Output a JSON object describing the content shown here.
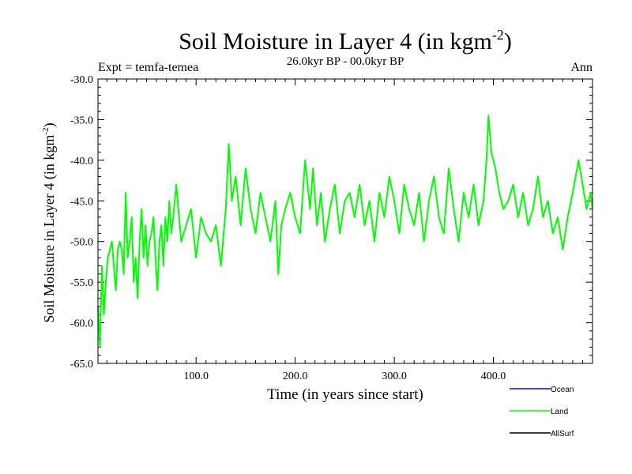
{
  "chart_data": {
    "type": "line",
    "title_main": "Soil Moisture in Layer 4 (in kgm",
    "title_sup": "-2",
    "title_close": ")",
    "subtitle": "26.0kyr BP - 00.0kyr BP",
    "expt_label": "Expt = temfa-temea",
    "period_label": "Ann",
    "xlabel": "Time (in years since start)",
    "ylabel_main": "Soil Moisture in Layer 4 (in kgm",
    "ylabel_sup": "-2",
    "ylabel_close": ")",
    "xlim": [
      1,
      500
    ],
    "ylim": [
      -65,
      -30
    ],
    "x_ticks": [
      100,
      200,
      300,
      400
    ],
    "x_tick_labels": [
      "100.0",
      "200.0",
      "300.0",
      "400.0"
    ],
    "y_ticks": [
      -30,
      -35,
      -40,
      -45,
      -50,
      -55,
      -60,
      -65
    ],
    "y_tick_labels": [
      "-30.0",
      "-35.0",
      "-40.0",
      "-45.0",
      "-50.0",
      "-55.0",
      "-60.0",
      "-65.0"
    ],
    "legend": [
      {
        "name": "Ocean",
        "color": "#0000ff"
      },
      {
        "name": "Land",
        "color": "#00ff00"
      },
      {
        "name": "AllSurf",
        "color": "#000000"
      }
    ],
    "series": [
      {
        "name": "Land",
        "color": "#00ff00",
        "x": [
          1,
          3,
          5,
          7,
          9,
          11,
          13,
          15,
          17,
          19,
          21,
          23,
          25,
          27,
          29,
          31,
          33,
          35,
          37,
          39,
          41,
          43,
          45,
          47,
          49,
          51,
          53,
          55,
          57,
          59,
          61,
          63,
          65,
          67,
          69,
          71,
          73,
          75,
          77,
          80,
          85,
          90,
          95,
          100,
          105,
          110,
          115,
          120,
          125,
          130,
          133,
          136,
          140,
          145,
          150,
          155,
          160,
          165,
          170,
          175,
          180,
          183,
          186,
          190,
          195,
          200,
          205,
          210,
          215,
          218,
          222,
          226,
          230,
          235,
          240,
          245,
          250,
          255,
          260,
          265,
          270,
          275,
          280,
          285,
          290,
          295,
          300,
          305,
          310,
          315,
          320,
          325,
          330,
          335,
          340,
          345,
          350,
          355,
          360,
          365,
          370,
          375,
          380,
          385,
          390,
          393,
          395,
          398,
          402,
          406,
          410,
          415,
          420,
          425,
          430,
          435,
          440,
          445,
          450,
          455,
          460,
          465,
          470,
          475,
          480,
          483,
          486,
          490,
          494,
          498,
          500
        ],
        "values": [
          -58,
          -63,
          -53,
          -59,
          -55,
          -52,
          -51,
          -50,
          -53,
          -56,
          -51,
          -50,
          -51,
          -54,
          -44,
          -52,
          -50,
          -47,
          -55,
          -52,
          -57,
          -50,
          -46,
          -52,
          -48,
          -53,
          -50,
          -49,
          -47,
          -52,
          -56,
          -50,
          -48,
          -53,
          -47,
          -50,
          -45,
          -49,
          -47,
          -43,
          -50,
          -48,
          -46,
          -52,
          -47,
          -49,
          -50,
          -48,
          -53,
          -46,
          -38,
          -45,
          -42,
          -48,
          -41,
          -46,
          -49,
          -44,
          -47,
          -50,
          -45,
          -54,
          -48,
          -46,
          -44,
          -47,
          -49,
          -40,
          -46,
          -41,
          -48,
          -44,
          -50,
          -46,
          -43,
          -49,
          -45,
          -44,
          -47,
          -43,
          -48,
          -45,
          -50,
          -44,
          -47,
          -42,
          -45,
          -49,
          -43,
          -46,
          -48,
          -44,
          -50,
          -45,
          -42,
          -47,
          -49,
          -41,
          -46,
          -50,
          -44,
          -47,
          -43,
          -48,
          -45,
          -40,
          -34.5,
          -39,
          -41,
          -44,
          -46,
          -45,
          -43,
          -47,
          -44,
          -48,
          -46,
          -42,
          -47,
          -45,
          -49,
          -47,
          -51,
          -47,
          -44,
          -42,
          -40,
          -43,
          -46,
          -44,
          -46
        ]
      }
    ]
  }
}
